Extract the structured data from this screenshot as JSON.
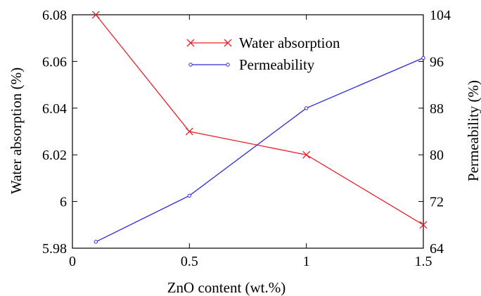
{
  "chart_data": {
    "type": "line",
    "title": "",
    "xlabel": "ZnO content (wt.%)",
    "ylabel": "Water absorption (%)",
    "y2label": "Permeability (%)",
    "xlim": [
      0,
      1.5
    ],
    "ylim": [
      5.98,
      6.08
    ],
    "y2lim": [
      64,
      104
    ],
    "grid": false,
    "legend": "top-center",
    "xticks": [
      {
        "v": 0,
        "label": "0"
      },
      {
        "v": 0.5,
        "label": "0.5"
      },
      {
        "v": 1,
        "label": "1"
      },
      {
        "v": 1.5,
        "label": "1.5"
      }
    ],
    "yticks": [
      {
        "v": 5.98,
        "label": "5.98"
      },
      {
        "v": 6.0,
        "label": "6"
      },
      {
        "v": 6.02,
        "label": "6.02"
      },
      {
        "v": 6.04,
        "label": "6.04"
      },
      {
        "v": 6.06,
        "label": "6.06"
      },
      {
        "v": 6.08,
        "label": "6.08"
      }
    ],
    "y2ticks": [
      {
        "v": 64,
        "label": "64"
      },
      {
        "v": 72,
        "label": "72"
      },
      {
        "v": 80,
        "label": "80"
      },
      {
        "v": 88,
        "label": "88"
      },
      {
        "v": 96,
        "label": "96"
      },
      {
        "v": 104,
        "label": "104"
      }
    ],
    "series": [
      {
        "name": "Water absorption",
        "axis": "left",
        "color": "#e8202a",
        "marker": "x",
        "x": [
          0.1,
          0.5,
          1.0,
          1.5
        ],
        "y": [
          6.08,
          6.03,
          6.02,
          5.99
        ]
      },
      {
        "name": "Permeability",
        "axis": "right",
        "color": "#2c2cd6",
        "marker": "circle",
        "x": [
          0.1,
          0.5,
          1.0,
          1.5
        ],
        "y": [
          65.1,
          73.0,
          88.0,
          96.6
        ]
      }
    ]
  }
}
